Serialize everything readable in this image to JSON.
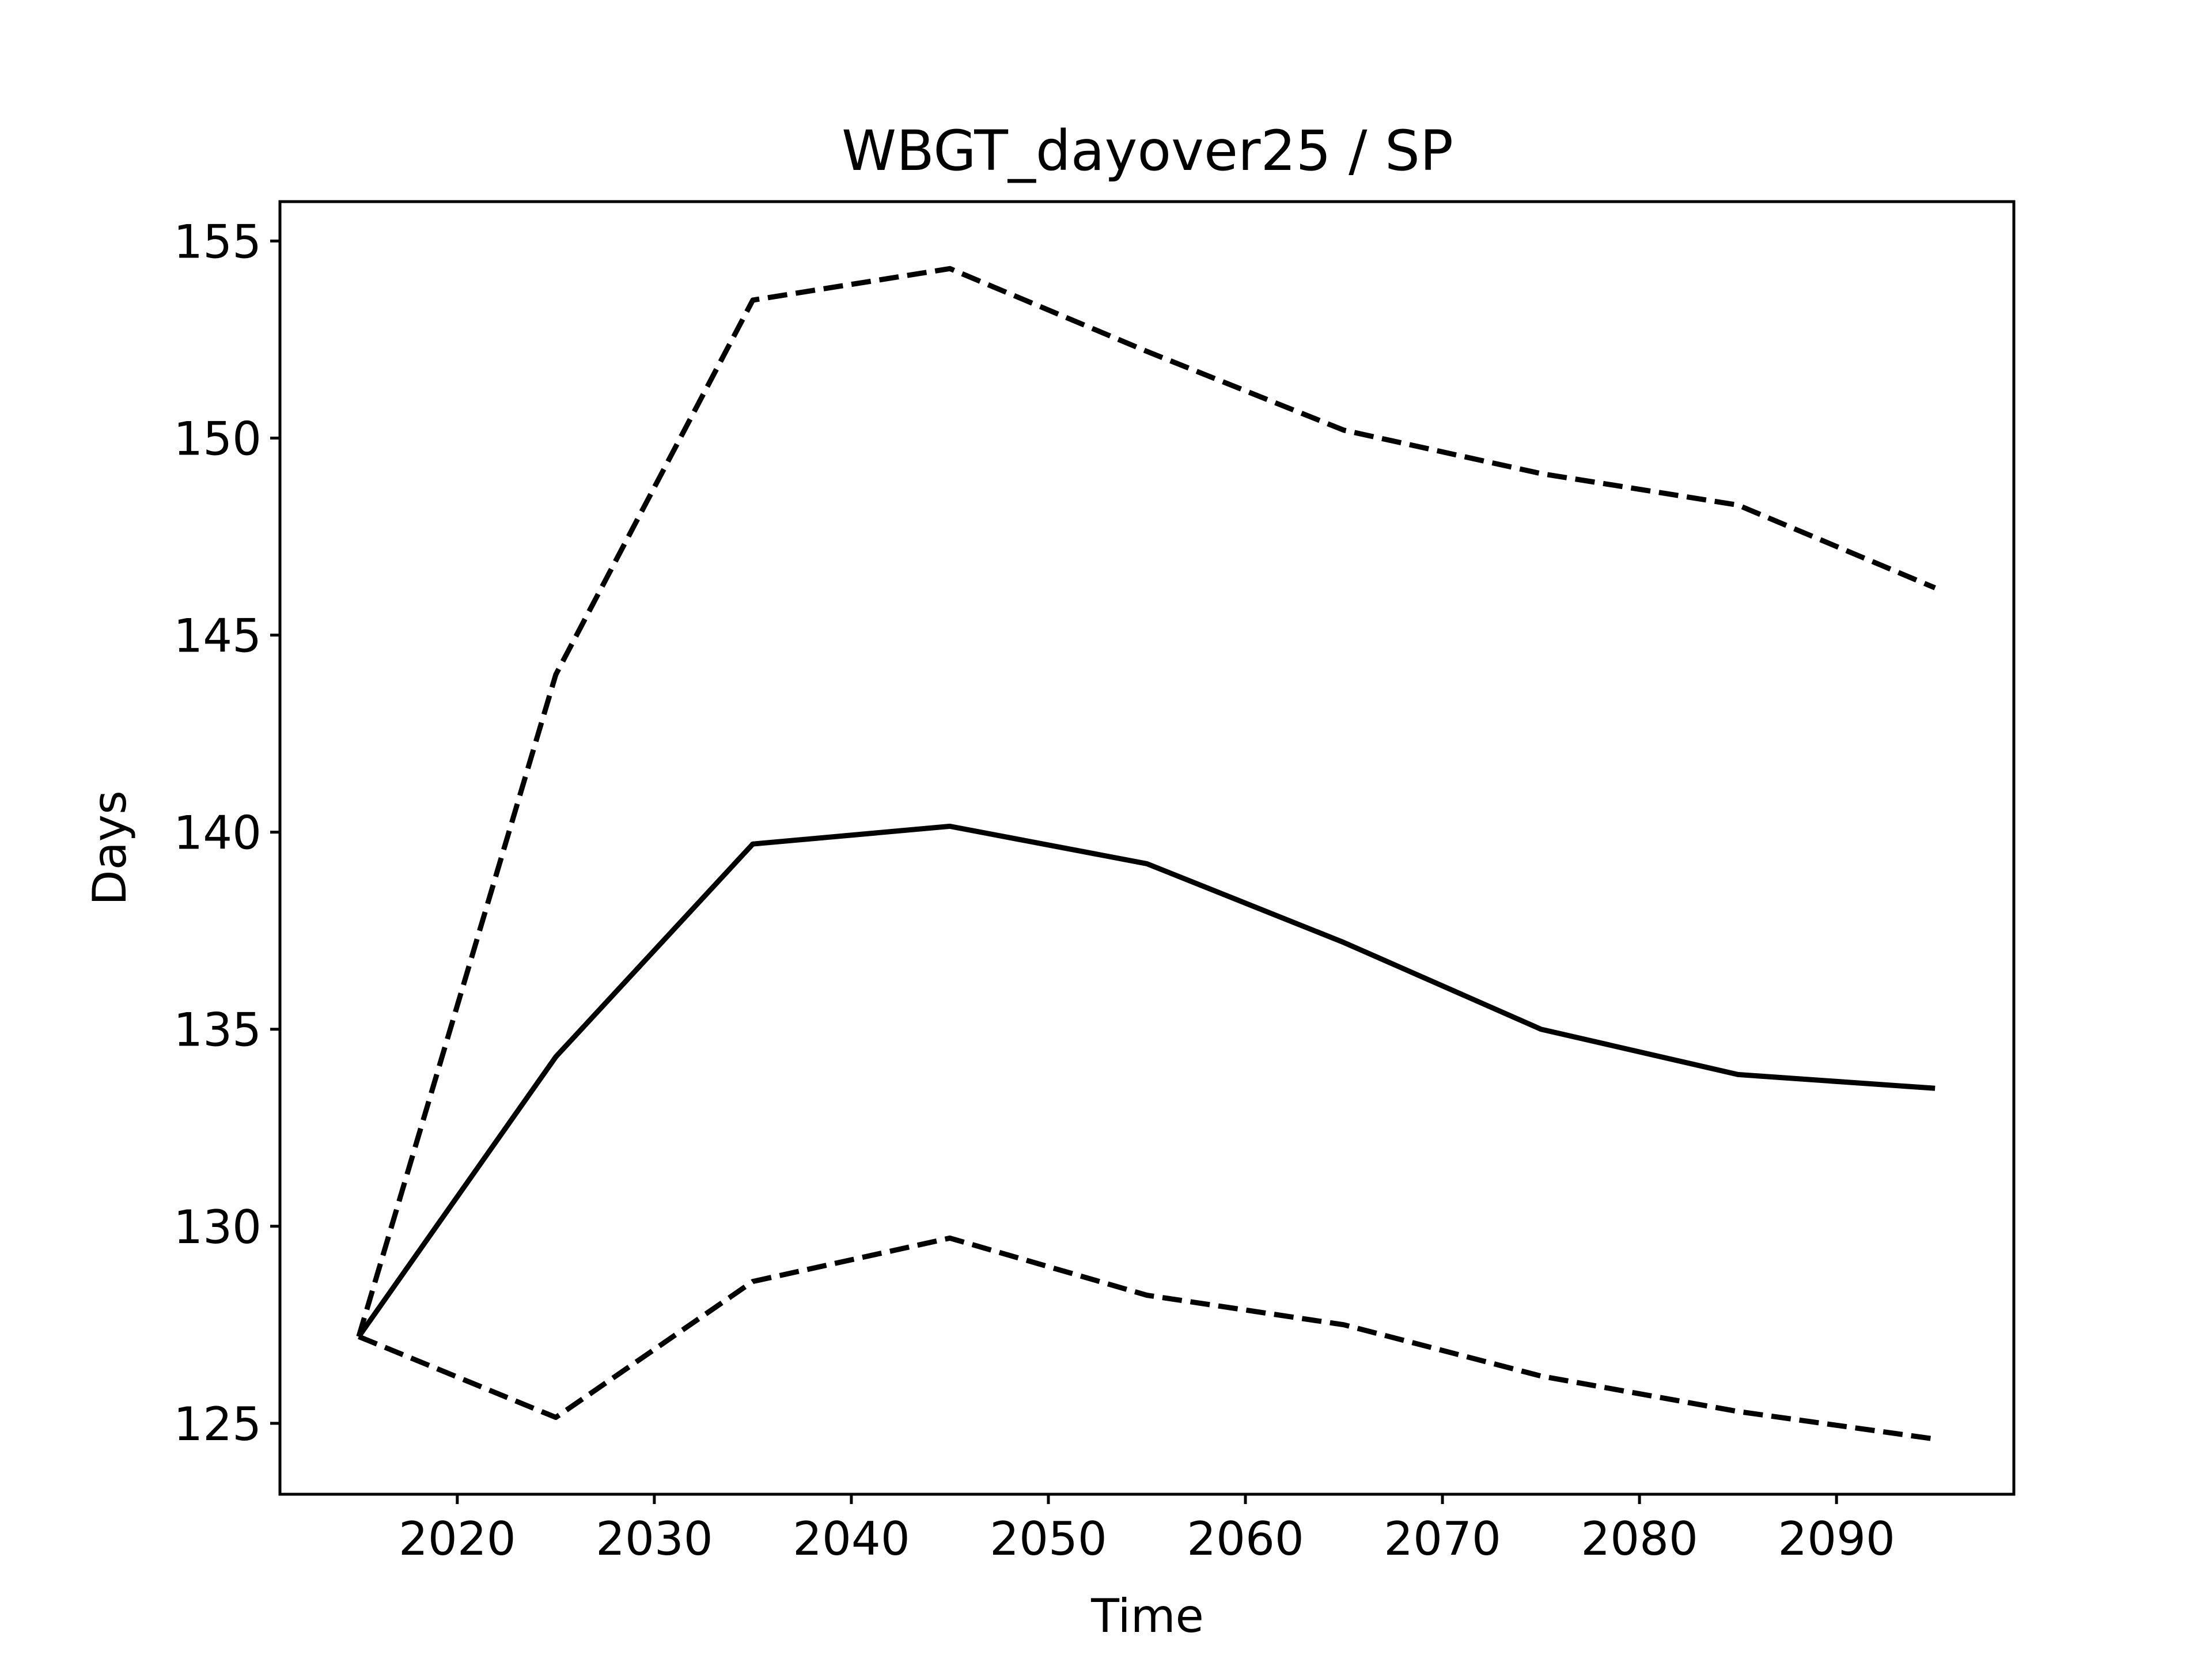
{
  "chart_data": {
    "type": "line",
    "title": "WBGT_dayover25 / SP",
    "xlabel": "Time",
    "ylabel": "Days",
    "xlim": [
      2011,
      2099
    ],
    "ylim": [
      123.2,
      156.0
    ],
    "xticks": [
      2020,
      2030,
      2040,
      2050,
      2060,
      2070,
      2080,
      2090
    ],
    "yticks": [
      125,
      130,
      135,
      140,
      145,
      150,
      155
    ],
    "grid": false,
    "legend": "none",
    "x": [
      2015,
      2025,
      2035,
      2045,
      2055,
      2065,
      2075,
      2085,
      2095
    ],
    "series": [
      {
        "style": "dashed",
        "color": "#000000",
        "values": [
          127.2,
          144.0,
          153.5,
          154.3,
          152.2,
          150.2,
          149.1,
          148.3,
          146.2
        ]
      },
      {
        "style": "solid",
        "color": "#000000",
        "values": [
          127.2,
          134.3,
          139.7,
          140.15,
          139.2,
          137.2,
          135.0,
          133.85,
          133.5
        ]
      },
      {
        "style": "dashed",
        "color": "#000000",
        "values": [
          127.2,
          125.15,
          128.6,
          129.7,
          128.25,
          127.5,
          126.2,
          125.3,
          124.6
        ]
      }
    ]
  }
}
